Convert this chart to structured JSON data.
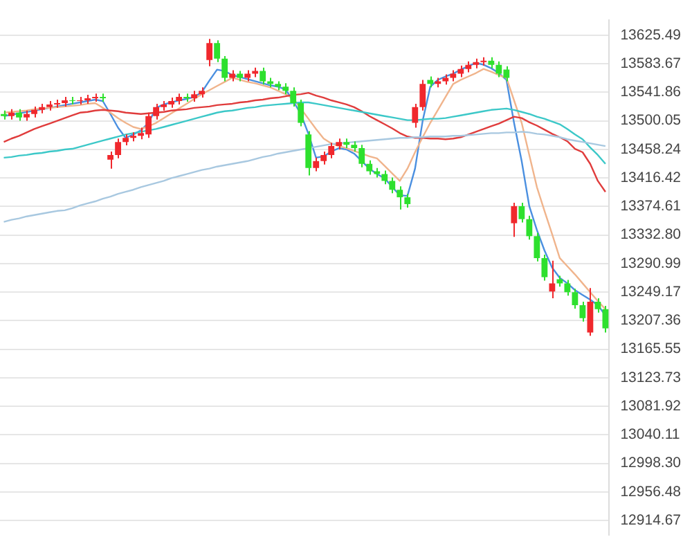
{
  "chart_data": {
    "type": "candlestick",
    "categories": [
      null,
      null,
      null,
      null,
      null,
      null,
      null,
      null,
      null,
      null,
      null,
      null,
      null,
      null,
      null,
      null,
      null,
      null,
      null,
      null,
      null,
      null,
      null,
      null,
      null,
      null,
      null,
      null,
      null,
      null,
      null,
      null,
      null,
      null,
      null,
      null,
      null,
      null,
      null,
      null,
      null,
      null,
      null,
      null,
      null,
      null,
      null,
      null,
      null,
      null,
      null,
      null,
      null,
      null,
      null,
      null,
      null,
      null,
      null,
      null,
      null,
      null,
      null,
      null,
      null,
      null,
      null,
      null,
      null,
      null,
      null,
      null,
      null,
      null,
      null,
      null,
      null,
      null,
      null,
      null
    ],
    "ohlc": [
      [
        13510,
        13515,
        13502,
        13507
      ],
      [
        13507,
        13517,
        13502,
        13512
      ],
      [
        13512,
        13517,
        13500,
        13505
      ],
      [
        13505,
        13515,
        13500,
        13510
      ],
      [
        13510,
        13521,
        13505,
        13516
      ],
      [
        13516,
        13525,
        13511,
        13520
      ],
      [
        13520,
        13529,
        13515,
        13524
      ],
      [
        13524,
        13531,
        13519,
        13526
      ],
      [
        13526,
        13535,
        13521,
        13530
      ],
      [
        13530,
        13535,
        13524,
        13529
      ],
      [
        13529,
        13535,
        13524,
        13530
      ],
      [
        13530,
        13538,
        13525,
        13533
      ],
      [
        13533,
        13540,
        13528,
        13535
      ],
      [
        13535,
        13540,
        13528,
        13533
      ],
      [
        13443,
        13455,
        13430,
        13450
      ],
      [
        13450,
        13474,
        13445,
        13469
      ],
      [
        13469,
        13480,
        13464,
        13475
      ],
      [
        13475,
        13483,
        13470,
        13478
      ],
      [
        13478,
        13490,
        13473,
        13482
      ],
      [
        13480,
        13512,
        13475,
        13507
      ],
      [
        13507,
        13525,
        13502,
        13520
      ],
      [
        13520,
        13529,
        13515,
        13524
      ],
      [
        13524,
        13534,
        13519,
        13529
      ],
      [
        13529,
        13540,
        13524,
        13535
      ],
      [
        13535,
        13540,
        13528,
        13533
      ],
      [
        13533,
        13544,
        13528,
        13539
      ],
      [
        13539,
        13549,
        13534,
        13544
      ],
      [
        13589,
        13620,
        13580,
        13614
      ],
      [
        13614,
        13618,
        13586,
        13591
      ],
      [
        13591,
        13595,
        13558,
        13563
      ],
      [
        13563,
        13574,
        13558,
        13569
      ],
      [
        13569,
        13573,
        13558,
        13563
      ],
      [
        13563,
        13574,
        13558,
        13569
      ],
      [
        13569,
        13578,
        13564,
        13573
      ],
      [
        13573,
        13578,
        13553,
        13558
      ],
      [
        13558,
        13563,
        13549,
        13554
      ],
      [
        13554,
        13558,
        13545,
        13550
      ],
      [
        13550,
        13555,
        13539,
        13544
      ],
      [
        13544,
        13549,
        13521,
        13526
      ],
      [
        13526,
        13531,
        13492,
        13497
      ],
      [
        13480,
        13485,
        13420,
        13431
      ],
      [
        13431,
        13446,
        13426,
        13441
      ],
      [
        13441,
        13455,
        13436,
        13450
      ],
      [
        13450,
        13468,
        13445,
        13463
      ],
      [
        13463,
        13474,
        13458,
        13469
      ],
      [
        13469,
        13474,
        13460,
        13465
      ],
      [
        13465,
        13470,
        13455,
        13460
      ],
      [
        13460,
        13465,
        13432,
        13437
      ],
      [
        13437,
        13442,
        13421,
        13426
      ],
      [
        13426,
        13431,
        13417,
        13422
      ],
      [
        13422,
        13427,
        13407,
        13412
      ],
      [
        13412,
        13417,
        13394,
        13399
      ],
      [
        13399,
        13404,
        13370,
        13388
      ],
      [
        13388,
        13393,
        13373,
        13378
      ],
      [
        13497,
        13525,
        13490,
        13520
      ],
      [
        13520,
        13560,
        13515,
        13554
      ],
      [
        13560,
        13565,
        13549,
        13554
      ],
      [
        13554,
        13563,
        13549,
        13558
      ],
      [
        13558,
        13568,
        13553,
        13563
      ],
      [
        13563,
        13574,
        13558,
        13569
      ],
      [
        13569,
        13581,
        13564,
        13576
      ],
      [
        13576,
        13587,
        13571,
        13582
      ],
      [
        13582,
        13591,
        13577,
        13586
      ],
      [
        13586,
        13593,
        13581,
        13588
      ],
      [
        13588,
        13593,
        13577,
        13582
      ],
      [
        13582,
        13587,
        13564,
        13569
      ],
      [
        13575,
        13580,
        13558,
        13563
      ],
      [
        13350,
        13380,
        13330,
        13375
      ],
      [
        13375,
        13380,
        13351,
        13356
      ],
      [
        13356,
        13361,
        13326,
        13331
      ],
      [
        13331,
        13336,
        13294,
        13299
      ],
      [
        13299,
        13304,
        13266,
        13271
      ],
      [
        13250,
        13295,
        13240,
        13262
      ],
      [
        13268,
        13273,
        13257,
        13262
      ],
      [
        13262,
        13267,
        13244,
        13249
      ],
      [
        13249,
        13254,
        13225,
        13230
      ],
      [
        13230,
        13235,
        13206,
        13211
      ],
      [
        13190,
        13255,
        13185,
        13235
      ],
      [
        13235,
        13240,
        13219,
        13224
      ],
      [
        13224,
        13229,
        13190,
        13196
      ]
    ],
    "colors": [
      "#2ee02e",
      "#f0282d",
      "#2ee02e",
      "#f0282d",
      "#f0282d",
      "#f0282d",
      "#f0282d",
      "#f0282d",
      "#f0282d",
      "#2ee02e",
      "#f0282d",
      "#f0282d",
      "#f0282d",
      "#2ee02e",
      "#f0282d",
      "#f0282d",
      "#f0282d",
      "#f0282d",
      "#f0282d",
      "#f0282d",
      "#f0282d",
      "#f0282d",
      "#f0282d",
      "#f0282d",
      "#2ee02e",
      "#f0282d",
      "#f0282d",
      "#f0282d",
      "#2ee02e",
      "#2ee02e",
      "#f0282d",
      "#2ee02e",
      "#f0282d",
      "#f0282d",
      "#2ee02e",
      "#2ee02e",
      "#2ee02e",
      "#2ee02e",
      "#2ee02e",
      "#2ee02e",
      "#2ee02e",
      "#f0282d",
      "#f0282d",
      "#f0282d",
      "#f0282d",
      "#2ee02e",
      "#2ee02e",
      "#2ee02e",
      "#2ee02e",
      "#2ee02e",
      "#2ee02e",
      "#2ee02e",
      "#2ee02e",
      "#2ee02e",
      "#f0282d",
      "#f0282d",
      "#2ee02e",
      "#f0282d",
      "#f0282d",
      "#f0282d",
      "#f0282d",
      "#f0282d",
      "#f0282d",
      "#f0282d",
      "#2ee02e",
      "#2ee02e",
      "#2ee02e",
      "#f0282d",
      "#2ee02e",
      "#2ee02e",
      "#2ee02e",
      "#2ee02e",
      "#f0282d",
      "#2ee02e",
      "#2ee02e",
      "#2ee02e",
      "#2ee02e",
      "#f0282d",
      "#2ee02e",
      "#2ee02e"
    ],
    "series": [
      {
        "type": "line",
        "color": "#a8c8e0",
        "values": [
          13352,
          13355,
          13357,
          13360,
          13362,
          13364,
          13366,
          13368,
          13369,
          13372,
          13376,
          13379,
          13382,
          13386,
          13389,
          13393,
          13396,
          13399,
          13403,
          13406,
          13409,
          13412,
          13416,
          13419,
          13422,
          13425,
          13428,
          13430,
          13433,
          13435,
          13437,
          13439,
          13441,
          13444,
          13447,
          13449,
          13452,
          13454,
          13456,
          13458,
          13460,
          13462,
          13464,
          13466,
          13467,
          13468,
          13469,
          13470,
          13471,
          13472,
          13473,
          13474,
          13475,
          13475,
          13476,
          13476,
          13477,
          13477,
          13477,
          13478,
          13478,
          13479,
          13480,
          13481,
          13482,
          13482,
          13483,
          13483,
          13484,
          13483,
          13481,
          13480,
          13478,
          13476,
          13473,
          13471,
          13469,
          13467,
          13465,
          13463
        ]
      },
      {
        "type": "line",
        "color": "#3cc8c8",
        "values": [
          13446,
          13447,
          13449,
          13450,
          13452,
          13453,
          13455,
          13456,
          13458,
          13459,
          13462,
          13465,
          13468,
          13471,
          13474,
          13477,
          13480,
          13482,
          13484,
          13486,
          13488,
          13491,
          13494,
          13497,
          13500,
          13503,
          13506,
          13509,
          13512,
          13514,
          13515,
          13517,
          13519,
          13520,
          13522,
          13523,
          13524,
          13525,
          13526,
          13527,
          13527,
          13525,
          13523,
          13521,
          13519,
          13517,
          13515,
          13513,
          13511,
          13509,
          13507,
          13505,
          13503,
          13501,
          13501,
          13502,
          13503,
          13503,
          13504,
          13506,
          13508,
          13510,
          13512,
          13514,
          13516,
          13517,
          13518,
          13516,
          13513,
          13510,
          13506,
          13503,
          13499,
          13495,
          13488,
          13480,
          13473,
          13461,
          13450,
          13437
        ]
      },
      {
        "type": "line",
        "color": "#e03c3c",
        "values": [
          13469,
          13474,
          13478,
          13483,
          13488,
          13492,
          13496,
          13500,
          13504,
          13508,
          13512,
          13513,
          13515,
          13516,
          13515,
          13514,
          13512,
          13511,
          13510,
          13511,
          13512,
          13513,
          13515,
          13516,
          13517,
          13519,
          13520,
          13521,
          13523,
          13524,
          13525,
          13527,
          13528,
          13530,
          13531,
          13533,
          13534,
          13536,
          13538,
          13539,
          13541,
          13537,
          13534,
          13530,
          13527,
          13524,
          13520,
          13514,
          13507,
          13501,
          13495,
          13489,
          13482,
          13477,
          13475,
          13475,
          13474,
          13474,
          13473,
          13474,
          13476,
          13480,
          13484,
          13488,
          13492,
          13496,
          13501,
          13506,
          13504,
          13498,
          13493,
          13487,
          13481,
          13476,
          13470,
          13459,
          13454,
          13437,
          13412,
          13396
        ]
      },
      {
        "type": "line",
        "color": "#f0b48c",
        "values": [
          13512,
          13513,
          13514,
          13515,
          13517,
          13518,
          13519,
          13520,
          13521,
          13522,
          13523,
          13525,
          13526,
          13519,
          13512,
          13504,
          13497,
          13491,
          13488,
          13492,
          13497,
          13504,
          13511,
          13518,
          13525,
          13532,
          13539,
          13545,
          13551,
          13557,
          13563,
          13560,
          13557,
          13555,
          13552,
          13549,
          13544,
          13539,
          13533,
          13518,
          13503,
          13488,
          13474,
          13467,
          13463,
          13460,
          13456,
          13452,
          13448,
          13445,
          13434,
          13423,
          13412,
          13430,
          13454,
          13476,
          13497,
          13516,
          13535,
          13554,
          13560,
          13565,
          13570,
          13576,
          13572,
          13567,
          13563,
          13530,
          13497,
          13450,
          13403,
          13368,
          13334,
          13299,
          13287,
          13275,
          13262,
          13249,
          13236,
          13224
        ]
      },
      {
        "type": "line",
        "color": "#4a8fe0",
        "values": [
          13507,
          13509,
          13511,
          13513,
          13515,
          13517,
          13519,
          13521,
          13523,
          13525,
          13527,
          13529,
          13531,
          13529,
          13510,
          13490,
          13475,
          13480,
          13486,
          13497,
          13519,
          13524,
          13527,
          13530,
          13532,
          13535,
          13542,
          13559,
          13575,
          13573,
          13567,
          13564,
          13561,
          13558,
          13555,
          13552,
          13550,
          13546,
          13529,
          13510,
          13481,
          13446,
          13448,
          13455,
          13460,
          13458,
          13452,
          13441,
          13430,
          13422,
          13416,
          13403,
          13391,
          13390,
          13430,
          13500,
          13550,
          13560,
          13565,
          13569,
          13575,
          13580,
          13585,
          13582,
          13577,
          13570,
          13560,
          13497,
          13441,
          13375,
          13340,
          13310,
          13285,
          13270,
          13262,
          13252,
          13245,
          13238,
          13230,
          13215
        ]
      }
    ],
    "ylim": [
      12893,
      13648
    ],
    "yticks": [
      12914.67,
      12956.48,
      {
        "value": 12998.3,
        "label": "12998.30"
      },
      13040.11,
      13081.92,
      13123.73,
      13165.55,
      13207.36,
      13249.17,
      13290.99,
      {
        "value": 13332.8,
        "label": "13332.80"
      },
      13374.61,
      13416.42,
      13458.24,
      13500.05,
      13541.86,
      13583.67,
      13625.49
    ],
    "grid": "y",
    "tick_labels": "y"
  }
}
